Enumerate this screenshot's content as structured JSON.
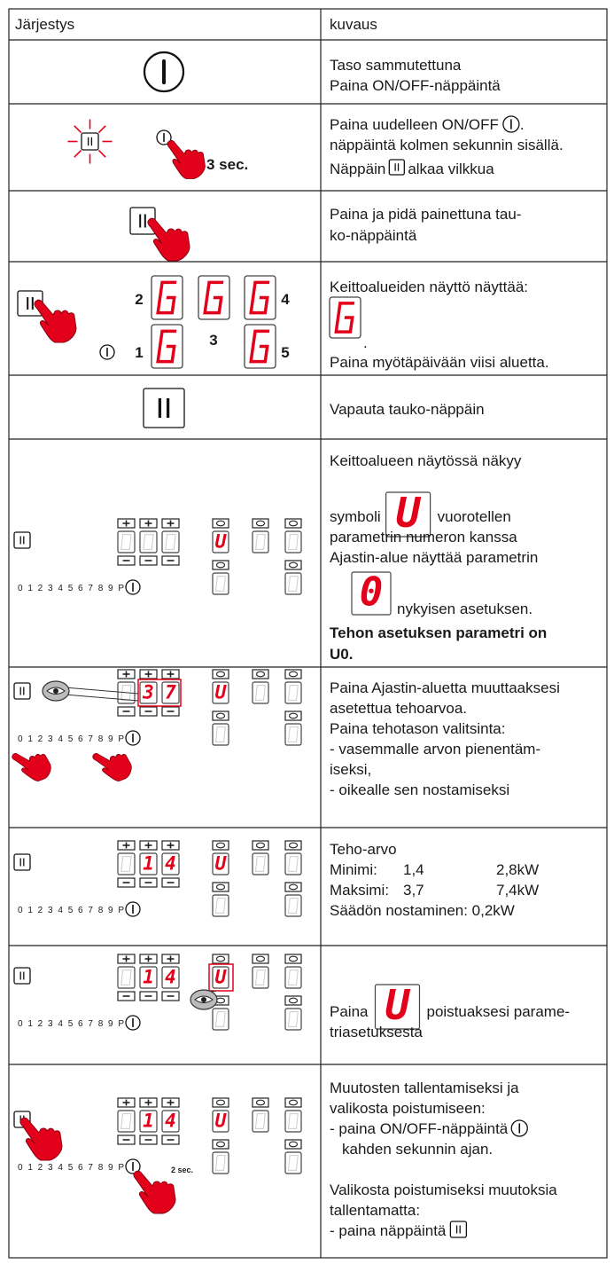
{
  "header": [
    "Järjestys",
    "kuvaus"
  ],
  "panel_scale": "0 1 2 3 4 5 6 7 8 9 P",
  "rows": [
    {
      "text": [
        "Taso sammutettuna",
        "Paina ON/OFF-näppäintä"
      ]
    },
    {
      "figure_label": "3 sec.",
      "text": [
        "Paina uudelleen ON/OFF",
        ".",
        "näppäintä kolmen sekunnin sisällä.",
        "Näppäin",
        "alkaa vilkkua"
      ]
    },
    {
      "text": [
        "Paina ja pidä painettuna tau-",
        "ko-näppäintä"
      ]
    },
    {
      "zones": [
        "2",
        "4",
        "3",
        "1",
        "5"
      ],
      "text": [
        "Keittoalueiden näyttö näyttää:",
        ".",
        "Paina myötäpäivään viisi aluetta."
      ]
    },
    {
      "text": [
        "Vapauta tauko-näppäin"
      ]
    },
    {
      "panel": {
        "zone": "U"
      },
      "icons": [
        "U",
        "0"
      ],
      "text": [
        "Keittoalueen näytössä näkyy",
        "symboli",
        "vuorotellen",
        "parametrin numeron kanssa",
        "Ajastin-alue näyttää parametrin",
        "nykyisen asetuksen.",
        "Tehon asetuksen parametri on",
        "U0."
      ]
    },
    {
      "panel": {
        "power": [
          "3",
          "7"
        ],
        "zone": "U"
      },
      "text": [
        "Paina Ajastin-aluetta muuttaaksesi",
        "asetettua tehoarvoa.",
        "Paina tehotason valitsinta:",
        "- vasemmalle arvon pienentäm-",
        "iseksi,",
        "- oikealle sen nostamiseksi"
      ]
    },
    {
      "panel": {
        "power": [
          "1",
          "4"
        ],
        "zone": "U"
      },
      "text": [
        "Teho-arvo"
      ],
      "table": [
        [
          "Minimi:",
          "1,4",
          "2,8kW"
        ],
        [
          "Maksimi:",
          "3,7",
          "7,4kW"
        ]
      ],
      "note": "Säädön nostaminen: 0,2kW"
    },
    {
      "panel": {
        "power": [
          "1",
          "4"
        ],
        "zone": "U"
      },
      "icons": [
        "U"
      ],
      "text": [
        "Paina",
        "poistuaksesi parame-",
        "triasetuksesta"
      ]
    },
    {
      "panel": {
        "power": [
          "1",
          "4"
        ],
        "zone": "U"
      },
      "figure_label": "2 sec.",
      "text": [
        "Muutosten tallentamiseksi ja",
        "valikosta poistumiseen:",
        "- paina ON/OFF-näppäintä",
        "kahden sekunnin ajan.",
        "Valikosta poistumiseksi muutoksia",
        "tallentamatta:",
        "- paina näppäintä"
      ]
    }
  ]
}
